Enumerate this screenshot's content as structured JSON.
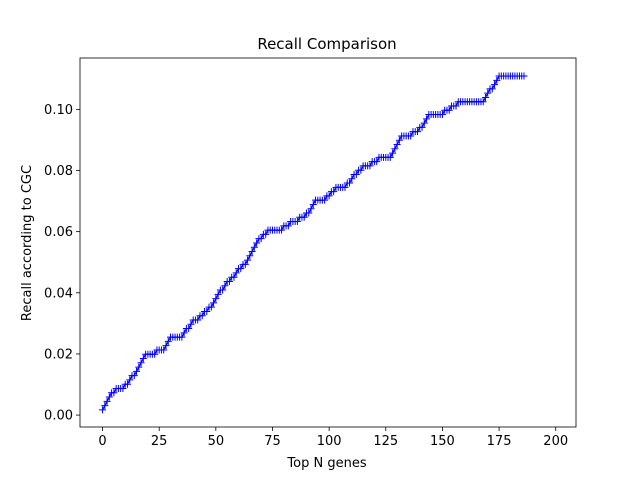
{
  "chart_data": {
    "type": "line",
    "title": "Recall Comparison",
    "xlabel": "Top N genes",
    "ylabel": "Recall according to CGC",
    "xlim": [
      -9.95,
      208.95
    ],
    "ylim": [
      -0.0039,
      0.1168
    ],
    "xticks": [
      0,
      25,
      50,
      75,
      100,
      125,
      150,
      175,
      200
    ],
    "yticks": [
      0.0,
      0.02,
      0.04,
      0.06,
      0.08,
      0.1
    ],
    "ytick_labels": [
      "0.00",
      "0.02",
      "0.04",
      "0.06",
      "0.08",
      "0.10"
    ],
    "grid": false,
    "marker": "+",
    "series_color": "#0000ff",
    "x_start": 0,
    "x_step": 1,
    "series": [
      {
        "values": [
          0.0017,
          0.0031,
          0.0045,
          0.0059,
          0.0073,
          0.0073,
          0.0087,
          0.0087,
          0.0087,
          0.0087,
          0.0101,
          0.0101,
          0.0115,
          0.0129,
          0.0129,
          0.0143,
          0.0157,
          0.0171,
          0.0185,
          0.0199,
          0.0199,
          0.0199,
          0.0199,
          0.0199,
          0.0213,
          0.0213,
          0.0213,
          0.0213,
          0.0227,
          0.0241,
          0.0255,
          0.0255,
          0.0255,
          0.0255,
          0.0255,
          0.0255,
          0.0269,
          0.0283,
          0.0283,
          0.0297,
          0.0311,
          0.0311,
          0.0311,
          0.0325,
          0.0325,
          0.0339,
          0.0339,
          0.0353,
          0.0353,
          0.0367,
          0.0381,
          0.0395,
          0.0409,
          0.0409,
          0.0423,
          0.0437,
          0.0437,
          0.0451,
          0.0451,
          0.0465,
          0.0479,
          0.0479,
          0.0493,
          0.0493,
          0.0507,
          0.0521,
          0.0535,
          0.0549,
          0.0563,
          0.0577,
          0.0577,
          0.0591,
          0.0591,
          0.0605,
          0.0605,
          0.0605,
          0.0605,
          0.0605,
          0.0605,
          0.0605,
          0.0619,
          0.0619,
          0.0619,
          0.0633,
          0.0633,
          0.0633,
          0.0633,
          0.0647,
          0.0647,
          0.0647,
          0.0661,
          0.0661,
          0.0675,
          0.0689,
          0.0703,
          0.0703,
          0.0703,
          0.0703,
          0.0703,
          0.0717,
          0.0717,
          0.0731,
          0.0731,
          0.0745,
          0.0745,
          0.0745,
          0.0745,
          0.0745,
          0.0759,
          0.0759,
          0.0773,
          0.0787,
          0.0787,
          0.0801,
          0.0801,
          0.0815,
          0.0815,
          0.0815,
          0.0815,
          0.0829,
          0.0829,
          0.0829,
          0.0843,
          0.0843,
          0.0843,
          0.0843,
          0.0843,
          0.0843,
          0.0857,
          0.0871,
          0.0885,
          0.0899,
          0.0913,
          0.0913,
          0.0913,
          0.0913,
          0.0913,
          0.0927,
          0.0927,
          0.0927,
          0.0941,
          0.0941,
          0.0955,
          0.0969,
          0.0983,
          0.0983,
          0.0983,
          0.0983,
          0.0983,
          0.0983,
          0.0983,
          0.0997,
          0.0997,
          0.0997,
          0.1011,
          0.1011,
          0.1011,
          0.1025,
          0.1025,
          0.1025,
          0.1025,
          0.1025,
          0.1025,
          0.1025,
          0.1025,
          0.1025,
          0.1025,
          0.1025,
          0.1025,
          0.1039,
          0.1053,
          0.1067,
          0.1067,
          0.1081,
          0.1095,
          0.1109,
          0.1109,
          0.1109,
          0.1109,
          0.1109,
          0.1109,
          0.1109,
          0.1109,
          0.1109,
          0.1109,
          0.1109,
          0.1109
        ]
      }
    ]
  }
}
